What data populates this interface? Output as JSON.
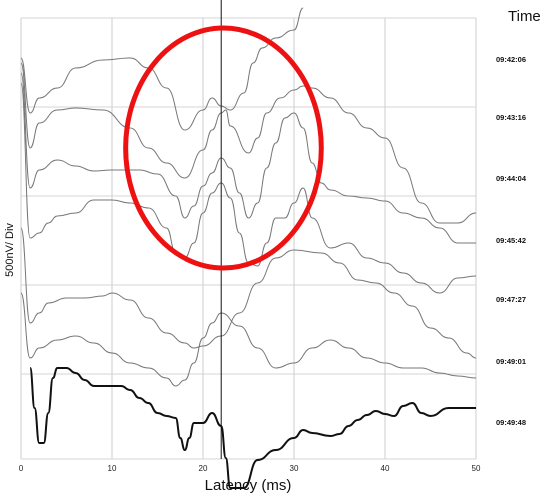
{
  "chart_data": {
    "type": "line",
    "xlabel": "Latency (ms)",
    "ylabel": "500nV/ Div",
    "time_header": "Time",
    "xlim": [
      0,
      50
    ],
    "x_ticks": [
      0,
      10,
      20,
      30,
      40,
      50
    ],
    "x_tick_labels": [
      "0",
      "10",
      "20",
      "30",
      "40",
      "50"
    ],
    "grid": true,
    "marker_x": 22,
    "annotation": {
      "shape": "ellipse",
      "color": "#ee1111",
      "x_range": [
        11.5,
        33
      ],
      "note": "highlighted wave region"
    },
    "series": [
      {
        "time": "09:42:06",
        "color": "#777777",
        "width": 1,
        "points": [
          [
            0,
            40
          ],
          [
            1,
            95
          ],
          [
            2,
            80
          ],
          [
            4,
            70
          ],
          [
            6,
            50
          ],
          [
            9,
            42
          ],
          [
            12,
            40
          ],
          [
            14,
            50
          ],
          [
            16,
            70
          ],
          [
            18,
            112
          ],
          [
            20,
            92
          ],
          [
            21,
            80
          ],
          [
            22,
            88
          ],
          [
            23,
            92
          ],
          [
            24.5,
            75
          ],
          [
            25.5,
            45
          ],
          [
            26.5,
            30
          ],
          [
            28,
            20
          ],
          [
            30,
            12
          ],
          [
            31,
            -10
          ]
        ]
      },
      {
        "time": "09:43:16",
        "color": "#777777",
        "width": 1,
        "points": [
          [
            0,
            45
          ],
          [
            1,
            130
          ],
          [
            2,
            105
          ],
          [
            4,
            92
          ],
          [
            6,
            90
          ],
          [
            9,
            92
          ],
          [
            12,
            110
          ],
          [
            14,
            130
          ],
          [
            16,
            145
          ],
          [
            18,
            160
          ],
          [
            20,
            132
          ],
          [
            21,
            112
          ],
          [
            22,
            95
          ],
          [
            22.5,
            92
          ],
          [
            23,
            108
          ],
          [
            25,
            135
          ],
          [
            26,
            120
          ],
          [
            27,
            95
          ],
          [
            28.5,
            80
          ],
          [
            30,
            72
          ],
          [
            31,
            68
          ],
          [
            32,
            70
          ],
          [
            34,
            80
          ],
          [
            36,
            95
          ],
          [
            38,
            110
          ],
          [
            40,
            120
          ],
          [
            42,
            150
          ],
          [
            44,
            185
          ],
          [
            46,
            205
          ],
          [
            48,
            205
          ],
          [
            50,
            195
          ]
        ]
      },
      {
        "time": "09:44:04",
        "color": "#777777",
        "width": 1,
        "points": [
          [
            0,
            55
          ],
          [
            1,
            170
          ],
          [
            2,
            152
          ],
          [
            4,
            142
          ],
          [
            6,
            148
          ],
          [
            8,
            153
          ],
          [
            10,
            152
          ],
          [
            13,
            152
          ],
          [
            15,
            156
          ],
          [
            17,
            178
          ],
          [
            18,
            200
          ],
          [
            19,
            188
          ],
          [
            20,
            168
          ],
          [
            21,
            155
          ],
          [
            22,
            140
          ],
          [
            23,
            150
          ],
          [
            24,
            175
          ],
          [
            25,
            200
          ],
          [
            26,
            185
          ],
          [
            27,
            150
          ],
          [
            28,
            125
          ],
          [
            29,
            100
          ],
          [
            30,
            95
          ],
          [
            31,
            110
          ],
          [
            32,
            145
          ],
          [
            33,
            165
          ],
          [
            34,
            172
          ],
          [
            36,
            178
          ],
          [
            38,
            180
          ],
          [
            40,
            183
          ],
          [
            42,
            195
          ],
          [
            44,
            200
          ],
          [
            46,
            210
          ],
          [
            48,
            225
          ],
          [
            50,
            225
          ]
        ]
      },
      {
        "time": "09:45:42",
        "color": "#777777",
        "width": 1,
        "points": [
          [
            0,
            65
          ],
          [
            1,
            220
          ],
          [
            2,
            215
          ],
          [
            3,
            205
          ],
          [
            4,
            198
          ],
          [
            6,
            195
          ],
          [
            8,
            182
          ],
          [
            10,
            182
          ],
          [
            12,
            185
          ],
          [
            14,
            190
          ],
          [
            16,
            210
          ],
          [
            17,
            235
          ],
          [
            18,
            240
          ],
          [
            19,
            225
          ],
          [
            20,
            195
          ],
          [
            21,
            175
          ],
          [
            22,
            165
          ],
          [
            23,
            180
          ],
          [
            24,
            215
          ],
          [
            25,
            245
          ],
          [
            26,
            248
          ],
          [
            27,
            225
          ],
          [
            28,
            200
          ],
          [
            29,
            200
          ],
          [
            30,
            185
          ],
          [
            31,
            170
          ],
          [
            32,
            200
          ],
          [
            34,
            230
          ],
          [
            36,
            225
          ],
          [
            38,
            240
          ],
          [
            40,
            245
          ],
          [
            42,
            255
          ],
          [
            44,
            265
          ],
          [
            46,
            275
          ],
          [
            48,
            260
          ],
          [
            50,
            258
          ]
        ]
      },
      {
        "time": "09:47:27",
        "color": "#777777",
        "width": 1,
        "points": [
          [
            0,
            210
          ],
          [
            1,
            305
          ],
          [
            2,
            295
          ],
          [
            3,
            285
          ],
          [
            5,
            280
          ],
          [
            7,
            280
          ],
          [
            9,
            278
          ],
          [
            10,
            275
          ],
          [
            12,
            282
          ],
          [
            14,
            300
          ],
          [
            16,
            315
          ],
          [
            18,
            325
          ],
          [
            19,
            330
          ],
          [
            20,
            328
          ],
          [
            22,
            318
          ],
          [
            24,
            295
          ],
          [
            26,
            265
          ],
          [
            28,
            240
          ],
          [
            30,
            232
          ],
          [
            33,
            235
          ],
          [
            35,
            245
          ],
          [
            37,
            262
          ],
          [
            39,
            265
          ],
          [
            41,
            275
          ],
          [
            43,
            288
          ],
          [
            45,
            310
          ],
          [
            47,
            320
          ],
          [
            49,
            335
          ],
          [
            50,
            340
          ]
        ]
      },
      {
        "time": "09:49:01",
        "color": "#777777",
        "width": 1,
        "points": [
          [
            0,
            275
          ],
          [
            1,
            340
          ],
          [
            2,
            330
          ],
          [
            4,
            322
          ],
          [
            6,
            318
          ],
          [
            8,
            325
          ],
          [
            10,
            335
          ],
          [
            12,
            345
          ],
          [
            14,
            350
          ],
          [
            16,
            360
          ],
          [
            17,
            368
          ],
          [
            18,
            362
          ],
          [
            19,
            345
          ],
          [
            20,
            320
          ],
          [
            21,
            305
          ],
          [
            22,
            295
          ],
          [
            24,
            308
          ],
          [
            26,
            330
          ],
          [
            28,
            350
          ],
          [
            30,
            345
          ],
          [
            32,
            330
          ],
          [
            34,
            322
          ],
          [
            36,
            330
          ],
          [
            38,
            340
          ],
          [
            40,
            345
          ],
          [
            42,
            350
          ],
          [
            44,
            350
          ],
          [
            46,
            355
          ],
          [
            48,
            358
          ],
          [
            50,
            360
          ]
        ]
      },
      {
        "time": "09:49:48",
        "color": "#111111",
        "width": 2,
        "points": [
          [
            1,
            350
          ],
          [
            1.5,
            390
          ],
          [
            2,
            425
          ],
          [
            2.5,
            425
          ],
          [
            3,
            395
          ],
          [
            3.5,
            360
          ],
          [
            4,
            350
          ],
          [
            5,
            350
          ],
          [
            6,
            355
          ],
          [
            7,
            362
          ],
          [
            8,
            368
          ],
          [
            9,
            368
          ],
          [
            10,
            368
          ],
          [
            11,
            368
          ],
          [
            12,
            372
          ],
          [
            13,
            380
          ],
          [
            14,
            385
          ],
          [
            15,
            395
          ],
          [
            16,
            398
          ],
          [
            17,
            400
          ],
          [
            17.5,
            420
          ],
          [
            18,
            432
          ],
          [
            18.5,
            420
          ],
          [
            19,
            405
          ],
          [
            20,
            405
          ],
          [
            21,
            395
          ],
          [
            22,
            408
          ],
          [
            22.5,
            440
          ],
          [
            23,
            470
          ],
          [
            24.5,
            470
          ],
          [
            26,
            442
          ],
          [
            28,
            432
          ],
          [
            30,
            420
          ],
          [
            31,
            412
          ],
          [
            32,
            415
          ],
          [
            34,
            418
          ],
          [
            35,
            416
          ],
          [
            36,
            408
          ],
          [
            37,
            402
          ],
          [
            38,
            397
          ],
          [
            39,
            393
          ],
          [
            40,
            396
          ],
          [
            41,
            398
          ],
          [
            42,
            388
          ],
          [
            43,
            385
          ],
          [
            44,
            395
          ],
          [
            45,
            398
          ],
          [
            47,
            390
          ],
          [
            49,
            390
          ],
          [
            50,
            390
          ]
        ]
      }
    ]
  }
}
